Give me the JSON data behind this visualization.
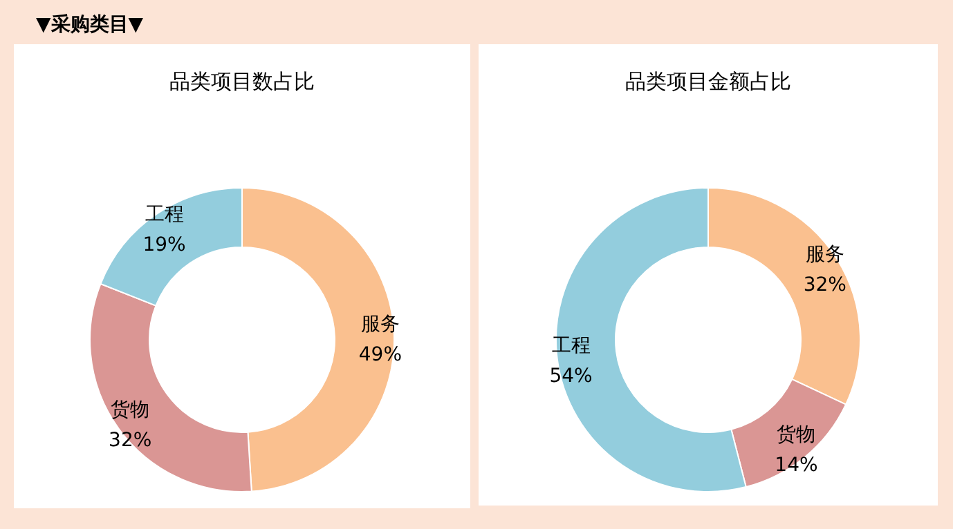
{
  "chart_data": [
    {
      "type": "donut",
      "title": "品类项目数占比",
      "annotations": [
        "▼采购类目▼"
      ],
      "categories": [
        "服务",
        "货物",
        "工程"
      ],
      "values": [
        49,
        32,
        19
      ],
      "value_labels": [
        "49%",
        "32%",
        "19%"
      ],
      "colors": [
        "#fac08f",
        "#da9694",
        "#93cddd"
      ]
    },
    {
      "type": "donut",
      "title": "品类项目金额占比",
      "categories": [
        "服务",
        "货物",
        "工程"
      ],
      "values": [
        32,
        14,
        54
      ],
      "value_labels": [
        "32%",
        "14%",
        "54%"
      ],
      "colors": [
        "#fac08f",
        "#da9694",
        "#93cddd"
      ]
    }
  ]
}
